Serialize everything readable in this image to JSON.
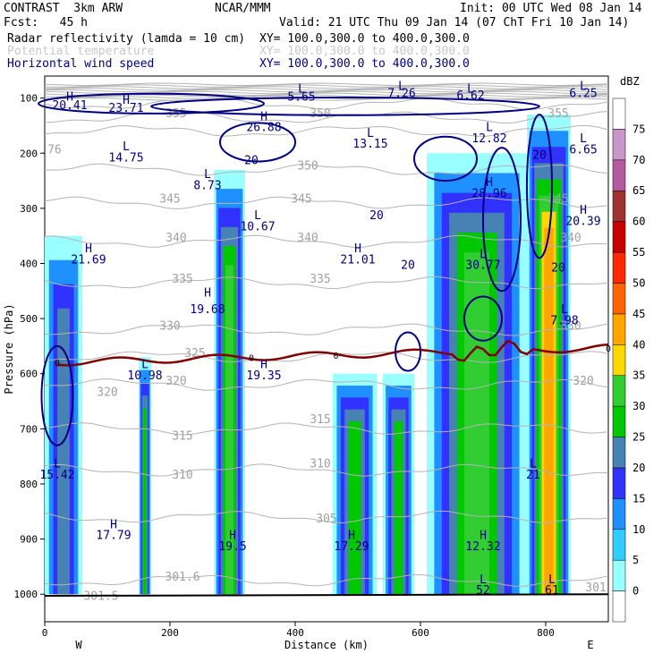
{
  "header": {
    "model": "CONTRAST  3km ARW",
    "fcst": "Fcst:   45 h",
    "center": "NCAR/MMM",
    "init": "Init: 00 UTC Wed 08 Jan 14",
    "valid": "Valid: 21 UTC Thu 09 Jan 14 (07 ChT Fri 10 Jan 14)",
    "lines": [
      {
        "field": "Radar reflectivity (lamda = 10 cm)",
        "xy": "XY= 100.0,300.0 to 400.0,300.0",
        "color": "#000000"
      },
      {
        "field": "Potential temperature",
        "xy": "XY= 100.0,300.0 to 400.0,300.0",
        "color": "#c8c8c8"
      },
      {
        "field": "Horizontal wind speed",
        "xy": "XY= 100.0,300.0 to 400.0,300.0",
        "color": "#000080"
      }
    ]
  },
  "chart_data": {
    "type": "heatmap",
    "xlabel": "Distance (km)",
    "ylabel": "Pressure (hPa)",
    "xlim": [
      0,
      900
    ],
    "ylim": [
      1050,
      60
    ],
    "x_ticks": [
      0,
      200,
      400,
      600,
      800
    ],
    "y_ticks": [
      100,
      200,
      300,
      400,
      500,
      600,
      700,
      800,
      900,
      1000
    ],
    "x_endpoint_labels": {
      "left": "W",
      "right": "E"
    },
    "colorbar": {
      "unit": "dBZ",
      "levels": [
        0,
        5,
        10,
        15,
        20,
        25,
        30,
        35,
        40,
        45,
        50,
        55,
        60,
        65,
        70,
        75
      ],
      "colors": [
        "#ffffff",
        "#99ffff",
        "#33ccff",
        "#1e90ff",
        "#3232ff",
        "#4682b4",
        "#00c800",
        "#32cd32",
        "#ffd700",
        "#ffa500",
        "#ff6400",
        "#ff2800",
        "#c80000",
        "#a03232",
        "#b45aa0",
        "#c896c8",
        "#ffffff"
      ]
    },
    "reflectivity_columns": [
      {
        "x1": 0,
        "x2": 60,
        "ptop": 350,
        "pbot": 1000,
        "dbz": 20
      },
      {
        "x1": 150,
        "x2": 170,
        "ptop": 570,
        "pbot": 1000,
        "dbz": 25
      },
      {
        "x1": 270,
        "x2": 320,
        "ptop": 230,
        "pbot": 1000,
        "dbz": 30
      },
      {
        "x1": 460,
        "x2": 530,
        "ptop": 600,
        "pbot": 1000,
        "dbz": 25
      },
      {
        "x1": 540,
        "x2": 590,
        "ptop": 600,
        "pbot": 1000,
        "dbz": 25
      },
      {
        "x1": 610,
        "x2": 770,
        "ptop": 200,
        "pbot": 1000,
        "dbz": 30
      },
      {
        "x1": 770,
        "x2": 840,
        "ptop": 130,
        "pbot": 1000,
        "dbz": 40
      }
    ],
    "freezing_level_label": "0",
    "theta_labels": [
      {
        "x": 210,
        "p": 135,
        "text": "355"
      },
      {
        "x": 440,
        "p": 135,
        "text": "350"
      },
      {
        "x": 820,
        "p": 135,
        "text": "355"
      },
      {
        "x": 420,
        "p": 230,
        "text": "350"
      },
      {
        "x": 200,
        "p": 290,
        "text": "345"
      },
      {
        "x": 410,
        "p": 290,
        "text": "345"
      },
      {
        "x": 820,
        "p": 290,
        "text": "345"
      },
      {
        "x": 210,
        "p": 360,
        "text": "340"
      },
      {
        "x": 420,
        "p": 360,
        "text": "340"
      },
      {
        "x": 840,
        "p": 360,
        "text": "340"
      },
      {
        "x": 220,
        "p": 435,
        "text": "335"
      },
      {
        "x": 440,
        "p": 435,
        "text": "335"
      },
      {
        "x": 200,
        "p": 520,
        "text": "330"
      },
      {
        "x": 840,
        "p": 520,
        "text": "330"
      },
      {
        "x": 240,
        "p": 570,
        "text": "325"
      },
      {
        "x": 100,
        "p": 640,
        "text": "320"
      },
      {
        "x": 210,
        "p": 620,
        "text": "320"
      },
      {
        "x": 860,
        "p": 620,
        "text": "320"
      },
      {
        "x": 220,
        "p": 720,
        "text": "315"
      },
      {
        "x": 440,
        "p": 690,
        "text": "315"
      },
      {
        "x": 220,
        "p": 790,
        "text": "310"
      },
      {
        "x": 440,
        "p": 770,
        "text": "310"
      },
      {
        "x": 450,
        "p": 870,
        "text": "305"
      },
      {
        "x": 220,
        "p": 975,
        "text": "301.6"
      },
      {
        "x": 90,
        "p": 1010,
        "text": "301.5"
      },
      {
        "x": 880,
        "p": 995,
        "text": "301"
      },
      {
        "x": 10,
        "p": 200,
        "text": ".76"
      }
    ],
    "wind_labels": [
      {
        "x": 40,
        "p": 105,
        "text": "H"
      },
      {
        "x": 40,
        "p": 120,
        "text": "20.41"
      },
      {
        "x": 130,
        "p": 110,
        "text": "H"
      },
      {
        "x": 130,
        "p": 125,
        "text": "23.71"
      },
      {
        "x": 410,
        "p": 90,
        "text": "L"
      },
      {
        "x": 410,
        "p": 105,
        "text": "5.65"
      },
      {
        "x": 570,
        "p": 85,
        "text": "L"
      },
      {
        "x": 570,
        "p": 98,
        "text": "7.26"
      },
      {
        "x": 680,
        "p": 90,
        "text": "L"
      },
      {
        "x": 680,
        "p": 102,
        "text": "6.62"
      },
      {
        "x": 860,
        "p": 85,
        "text": "L"
      },
      {
        "x": 860,
        "p": 98,
        "text": "6.25"
      },
      {
        "x": 350,
        "p": 140,
        "text": "H"
      },
      {
        "x": 350,
        "p": 160,
        "text": "26.88"
      },
      {
        "x": 520,
        "p": 170,
        "text": "L"
      },
      {
        "x": 520,
        "p": 190,
        "text": "13.15"
      },
      {
        "x": 710,
        "p": 160,
        "text": "L"
      },
      {
        "x": 710,
        "p": 180,
        "text": "12.82"
      },
      {
        "x": 860,
        "p": 180,
        "text": "L"
      },
      {
        "x": 860,
        "p": 200,
        "text": "6.65"
      },
      {
        "x": 130,
        "p": 195,
        "text": "L"
      },
      {
        "x": 130,
        "p": 215,
        "text": "14.75"
      },
      {
        "x": 330,
        "p": 220,
        "text": "20"
      },
      {
        "x": 260,
        "p": 245,
        "text": "L"
      },
      {
        "x": 260,
        "p": 265,
        "text": "8.73"
      },
      {
        "x": 710,
        "p": 260,
        "text": "H"
      },
      {
        "x": 710,
        "p": 280,
        "text": "28.96"
      },
      {
        "x": 790,
        "p": 210,
        "text": "20"
      },
      {
        "x": 530,
        "p": 320,
        "text": "20"
      },
      {
        "x": 340,
        "p": 320,
        "text": "L"
      },
      {
        "x": 340,
        "p": 340,
        "text": "10.67"
      },
      {
        "x": 860,
        "p": 310,
        "text": "H"
      },
      {
        "x": 860,
        "p": 330,
        "text": "20.39"
      },
      {
        "x": 70,
        "p": 380,
        "text": "H"
      },
      {
        "x": 70,
        "p": 400,
        "text": "21.69"
      },
      {
        "x": 500,
        "p": 380,
        "text": "H"
      },
      {
        "x": 500,
        "p": 400,
        "text": "21.01"
      },
      {
        "x": 580,
        "p": 410,
        "text": "20"
      },
      {
        "x": 700,
        "p": 390,
        "text": "L"
      },
      {
        "x": 700,
        "p": 410,
        "text": "30.77"
      },
      {
        "x": 820,
        "p": 415,
        "text": "20"
      },
      {
        "x": 260,
        "p": 460,
        "text": "H"
      },
      {
        "x": 260,
        "p": 490,
        "text": "19.68"
      },
      {
        "x": 830,
        "p": 490,
        "text": "L"
      },
      {
        "x": 830,
        "p": 510,
        "text": "7.98"
      },
      {
        "x": 160,
        "p": 590,
        "text": "L"
      },
      {
        "x": 160,
        "p": 610,
        "text": "10.98"
      },
      {
        "x": 350,
        "p": 590,
        "text": "H"
      },
      {
        "x": 350,
        "p": 610,
        "text": "19.35"
      },
      {
        "x": 20,
        "p": 770,
        "text": "L"
      },
      {
        "x": 20,
        "p": 790,
        "text": "15.42"
      },
      {
        "x": 780,
        "p": 770,
        "text": "L"
      },
      {
        "x": 780,
        "p": 790,
        "text": "21"
      },
      {
        "x": 110,
        "p": 880,
        "text": "H"
      },
      {
        "x": 110,
        "p": 900,
        "text": "17.79"
      },
      {
        "x": 300,
        "p": 900,
        "text": "H"
      },
      {
        "x": 300,
        "p": 920,
        "text": "19.5"
      },
      {
        "x": 490,
        "p": 900,
        "text": "H"
      },
      {
        "x": 490,
        "p": 920,
        "text": "17.29"
      },
      {
        "x": 700,
        "p": 900,
        "text": "H"
      },
      {
        "x": 700,
        "p": 920,
        "text": "12.32"
      },
      {
        "x": 700,
        "p": 980,
        "text": "L"
      },
      {
        "x": 700,
        "p": 1000,
        "text": "52"
      },
      {
        "x": 810,
        "p": 980,
        "text": "L"
      },
      {
        "x": 810,
        "p": 1000,
        "text": "61"
      }
    ]
  }
}
